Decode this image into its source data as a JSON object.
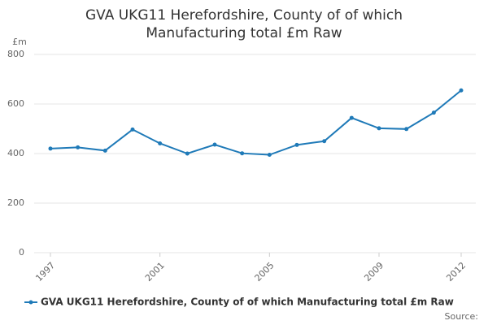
{
  "chart_data": {
    "type": "line",
    "title": "GVA UKG11 Herefordshire, County of of which Manufacturing total £m Raw",
    "y_label": "£m",
    "source": "Source:",
    "x": [
      1997,
      1998,
      1999,
      2000,
      2001,
      2002,
      2003,
      2004,
      2005,
      2006,
      2007,
      2008,
      2009,
      2010,
      2011,
      2012
    ],
    "series": [
      {
        "name": "GVA UKG11 Herefordshire, County of of which Manufacturing total £m Raw",
        "color": "#1f7ab8",
        "values": [
          420,
          425,
          412,
          497,
          441,
          400,
          436,
          401,
          395,
          435,
          450,
          544,
          502,
          499,
          565,
          655
        ]
      }
    ],
    "xlim": [
      1997,
      2012
    ],
    "xticks": [
      1997,
      2001,
      2005,
      2009,
      2012
    ],
    "ylim": [
      0,
      800
    ],
    "yticks": [
      0,
      200,
      400,
      600,
      800
    ],
    "grid": true
  }
}
